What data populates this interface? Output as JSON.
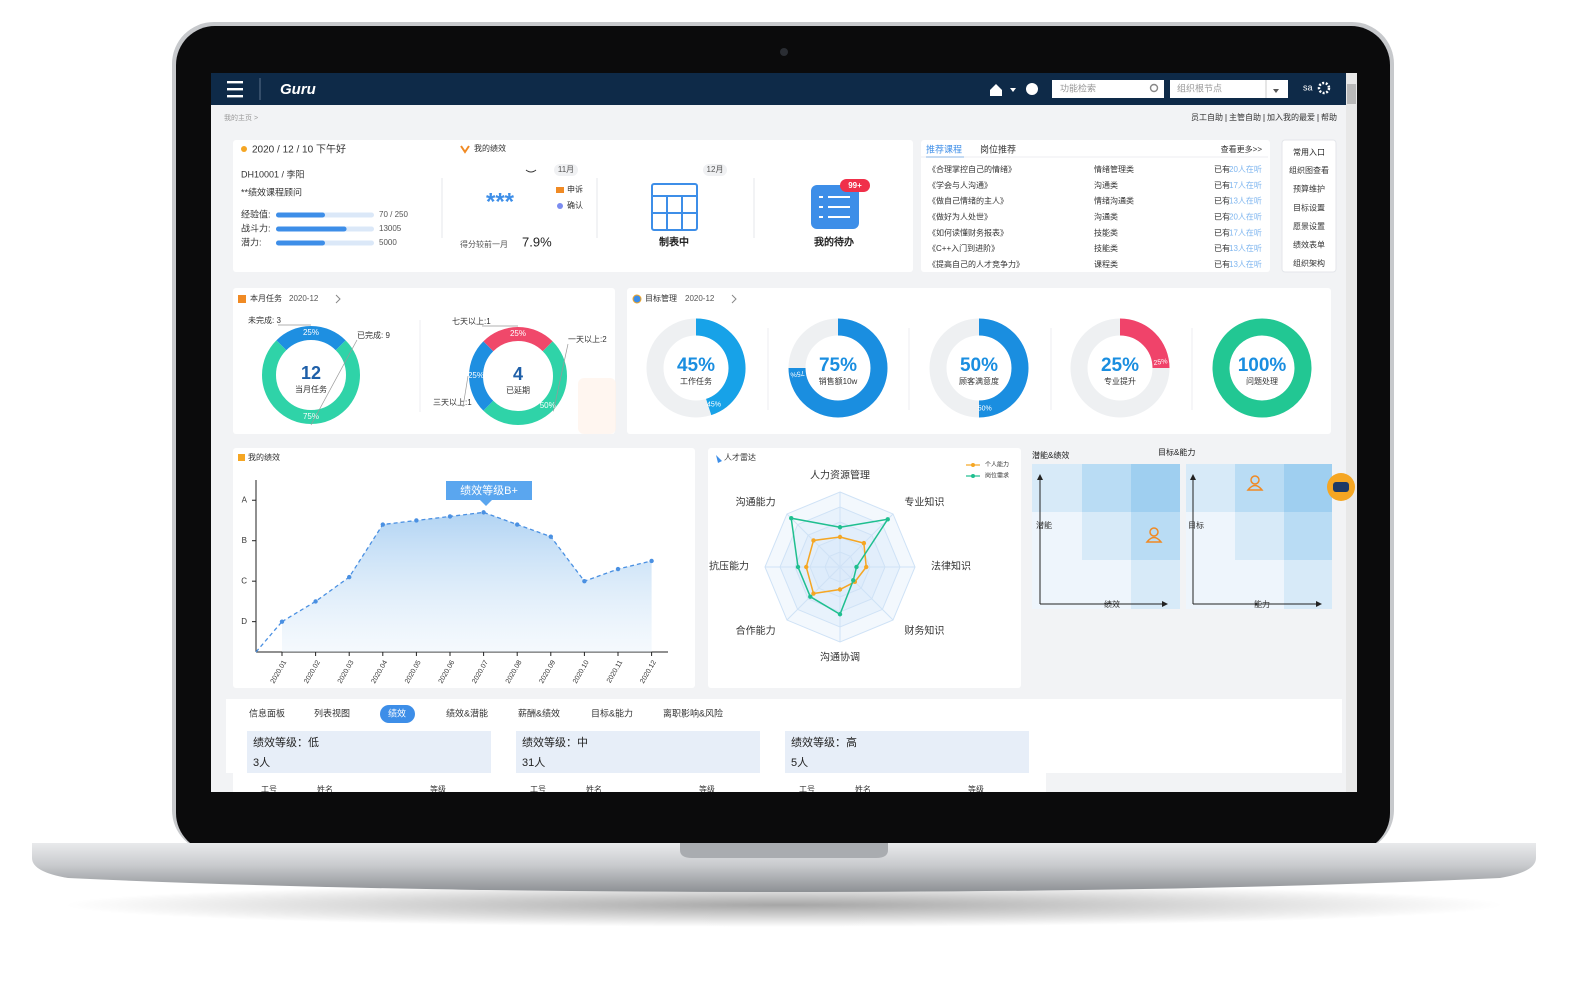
{
  "header": {
    "logo": "Guru",
    "search_placeholder": "功能检索",
    "org_select": "组织根节点",
    "user": "sa"
  },
  "breadcrumb": "我的主页 >",
  "top_links": [
    "员工自助",
    "主管自助",
    "加入我的最爱",
    "帮助"
  ],
  "profile": {
    "greeting": "2020 / 12 / 10 下午好",
    "id_name": "DH10001 / 李阳",
    "role": "**绩效课程顾问",
    "stats": [
      {
        "label": "经验值:",
        "value": "70 / 250",
        "fill": 50
      },
      {
        "label": "战斗力:",
        "value": 13005,
        "fill": 72
      },
      {
        "label": "潜力:",
        "value": 5000,
        "fill": 50
      }
    ]
  },
  "performance": {
    "title": "我的绩效",
    "month": "11月",
    "rating": "***",
    "actions": [
      "申诉",
      "确认"
    ],
    "compare_label": "得分较前一月",
    "compare_value": "7.9%",
    "next_month": "12月",
    "status": "制表中",
    "todo_label": "我的待办",
    "todo_badge": "99+"
  },
  "courses": {
    "tabs": [
      "推荐课程",
      "岗位推荐"
    ],
    "more": "查看更多>>",
    "rows": [
      [
        "《合理掌控自己的情绪》",
        "情绪管理类",
        "已有",
        "20人在听"
      ],
      [
        "《学会与人沟通》",
        "沟通类",
        "已有",
        "17人在听"
      ],
      [
        "《做自己情绪的主人》",
        "情绪沟通类",
        "已有",
        "13人在听"
      ],
      [
        "《做好为人处世》",
        "沟通类",
        "已有",
        "20人在听"
      ],
      [
        "《如何读懂财务报表》",
        "技能类",
        "已有",
        "17人在听"
      ],
      [
        "《C++入门到进阶》",
        "技能类",
        "已有",
        "13人在听"
      ],
      [
        "《提高自己的人才竞争力》",
        "课程类",
        "已有",
        "13人在听"
      ]
    ]
  },
  "shortcuts": {
    "title": "常用入口",
    "items": [
      "组织图查看",
      "预算维护",
      "目标设置",
      "愿景设置",
      "绩效表单",
      "组织架构"
    ]
  },
  "tasks": {
    "title": "本月任务",
    "period": "2020-12",
    "donuts": [
      {
        "type": "donut",
        "center_value": 12,
        "center_label": "当月任务",
        "segments": [
          {
            "label": "未完成: 3",
            "value": 25,
            "value_label": "25%",
            "color": "#1e8fe1"
          },
          {
            "label": "已完成: 9",
            "value": 75,
            "value_label": "75%",
            "color": "#2fd3a8"
          }
        ]
      },
      {
        "type": "donut",
        "center_value": 4,
        "center_label": "已延期",
        "segments": [
          {
            "label": "七天以上:1",
            "value": 25,
            "value_label": "25%",
            "color": "#f0486a"
          },
          {
            "label": "一天以上:2",
            "value": 50,
            "value_label": "50%",
            "color": "#2fd3a8"
          },
          {
            "label": "三天以上:1",
            "value": 25,
            "value_label": "25%",
            "color": "#1e8fe1"
          }
        ]
      }
    ]
  },
  "goals": {
    "title": "目标管理",
    "period": "2020-12",
    "rings": [
      {
        "type": "ring",
        "value": 45,
        "value_label": "45%",
        "label": "工作任务",
        "color": "#17a2e8"
      },
      {
        "type": "ring",
        "value": 75,
        "value_label": "75%",
        "label": "销售额10w",
        "color": "#1a8ee0"
      },
      {
        "type": "ring",
        "value": 50,
        "value_label": "50%",
        "label": "顾客满意度",
        "color": "#1a8ee0"
      },
      {
        "type": "ring",
        "value": 25,
        "value_label": "25%",
        "label": "专业提升",
        "color": "#f0436a"
      },
      {
        "type": "ring",
        "value": 100,
        "value_label": "100%",
        "label": "问题处理",
        "color": "#22c793"
      }
    ]
  },
  "performance_chart": {
    "chart_data": {
      "type": "line",
      "title": "我的绩效",
      "annotation": "绩效等级B+",
      "categories": [
        "2020.01",
        "2020.02",
        "2020.03",
        "2020.04",
        "2020.05",
        "2020.06",
        "2020.07",
        "2020.08",
        "2020.09",
        "2020.10",
        "2020.11",
        "2020.12"
      ],
      "values": [
        1.0,
        1.5,
        2.1,
        3.4,
        3.5,
        3.6,
        3.7,
        3.4,
        3.1,
        2.0,
        2.3,
        2.5
      ],
      "color": "#4a90e2",
      "ylim": [
        0.25,
        4.5
      ],
      "yticks": [
        {
          "value": 1,
          "label": "D"
        },
        {
          "value": 2,
          "label": "C"
        },
        {
          "value": 3,
          "label": "B"
        },
        {
          "value": 4,
          "label": "A"
        }
      ]
    }
  },
  "radar": {
    "chart_data": {
      "type": "radar",
      "title": "人才雷达",
      "categories": [
        "人力资源管理",
        "专业知识",
        "法律知识",
        "财务知识",
        "沟通协调",
        "合作能力",
        "抗压能力",
        "沟通能力"
      ],
      "rlim": [
        0,
        100
      ],
      "series": [
        {
          "name": "个人能力",
          "color": "#f5a623",
          "values": [
            40,
            45,
            35,
            28,
            30,
            50,
            45,
            50
          ]
        },
        {
          "name": "岗位需求",
          "color": "#1fbf8f",
          "values": [
            53,
            90,
            22,
            25,
            63,
            56,
            56,
            92
          ]
        }
      ],
      "legend": "top-right"
    }
  },
  "matrix": {
    "panels": [
      {
        "title": "潜能&绩效",
        "y_label": "潜能",
        "x_label": "绩效"
      },
      {
        "title": "目标&能力",
        "y_label": "目标",
        "x_label": "能力"
      }
    ]
  },
  "detail": {
    "tabs": [
      "信息面板",
      "列表视图",
      "绩效",
      "绩效&潜能",
      "薪酬&绩效",
      "目标&能力",
      "离职影响&风险"
    ],
    "active_tab": 2,
    "groups": [
      {
        "title": "绩效等级：低",
        "count": "3人",
        "columns": [
          "工号",
          "姓名",
          "等级"
        ]
      },
      {
        "title": "绩效等级：中",
        "count": "31人",
        "columns": [
          "工号",
          "姓名",
          "等级"
        ]
      },
      {
        "title": "绩效等级：高",
        "count": "5人",
        "columns": [
          "工号",
          "姓名",
          "等级"
        ]
      }
    ]
  }
}
